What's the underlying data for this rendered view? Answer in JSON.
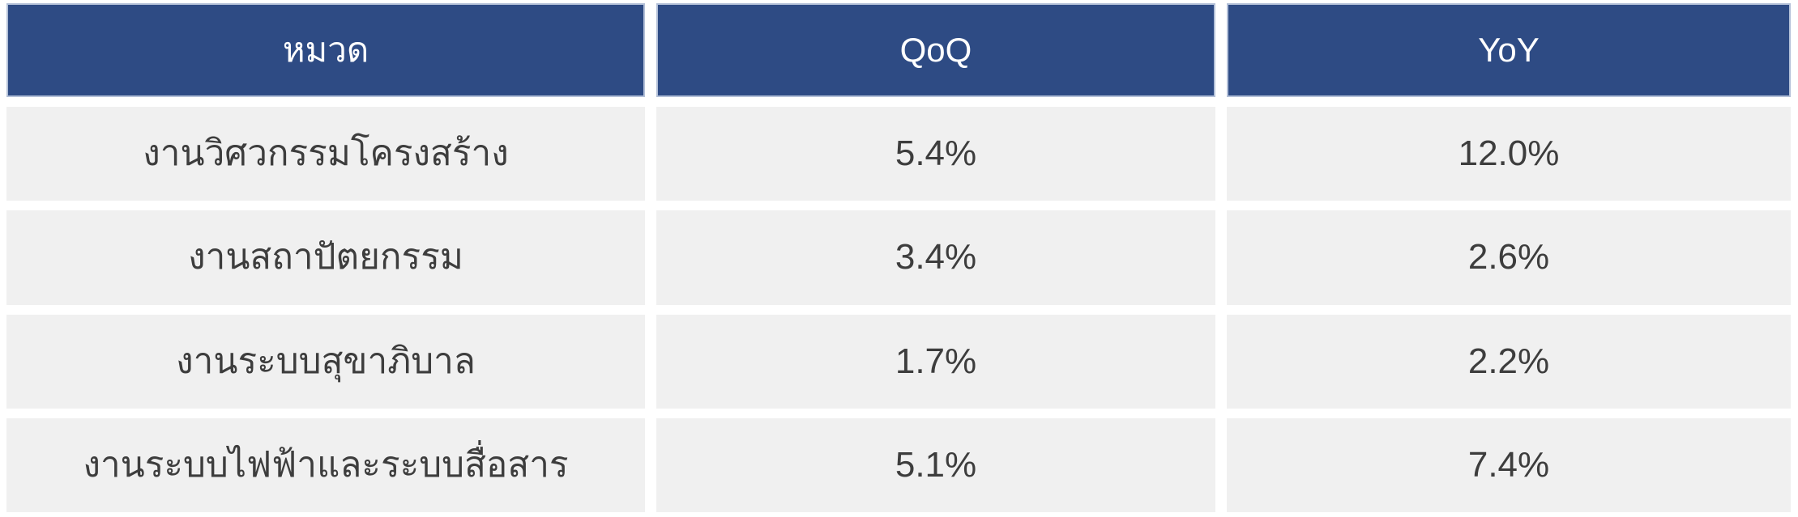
{
  "chart_data": {
    "type": "table",
    "title": "",
    "columns": [
      "หมวด",
      "QoQ",
      "YoY"
    ],
    "categories": [
      "งานวิศวกรรมโครงสร้าง",
      "งานสถาปัตยกรรม",
      "งานระบบสุขาภิบาล",
      "งานระบบไฟฟ้าและระบบสื่อสาร"
    ],
    "series": [
      {
        "name": "QoQ",
        "values": [
          5.4,
          3.4,
          1.7,
          5.1
        ]
      },
      {
        "name": "YoY",
        "values": [
          12.0,
          2.6,
          2.2,
          7.4
        ]
      }
    ]
  },
  "table": {
    "columns": [
      {
        "label": "หมวด"
      },
      {
        "label": "QoQ"
      },
      {
        "label": "YoY"
      }
    ],
    "rows": [
      {
        "category": "งานวิศวกรรมโครงสร้าง",
        "qoq": "5.4%",
        "yoy": "12.0%"
      },
      {
        "category": "งานสถาปัตยกรรม",
        "qoq": "3.4%",
        "yoy": "2.6%"
      },
      {
        "category": "งานระบบสุขาภิบาล",
        "qoq": "1.7%",
        "yoy": "2.2%"
      },
      {
        "category": "งานระบบไฟฟ้าและระบบสื่อสาร",
        "qoq": "5.1%",
        "yoy": "7.4%"
      }
    ],
    "colors": {
      "header_bg": "#2e4b84",
      "header_border": "#b3c0d8",
      "header_text": "#ffffff",
      "row_bg": "#f0f0f0",
      "row_text": "#3d3d3d",
      "page_bg": "#ffffff"
    }
  }
}
